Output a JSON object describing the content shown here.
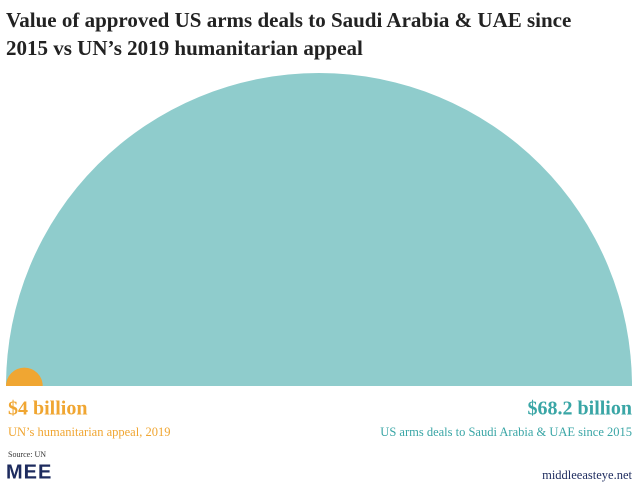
{
  "chart_data": {
    "type": "semicircle",
    "title": "Value of approved US arms deals to Saudi Arabia & UAE since 2015 vs UN’s 2019 humanitarian appeal",
    "categories": [
      "UN’s humanitarian appeal, 2019",
      "US arms deals to Saudi Arabia & UAE since 2015"
    ],
    "values": [
      4,
      68.2
    ],
    "value_labels": [
      "$4 billion",
      "$68.2 billion"
    ],
    "colors": [
      "#f0a632",
      "#8fcccc"
    ],
    "label_colors": [
      "#f0a632",
      "#3aa6a6"
    ],
    "source": "Source: UN",
    "logo": "MEE",
    "site": "middleeasteye.net"
  }
}
